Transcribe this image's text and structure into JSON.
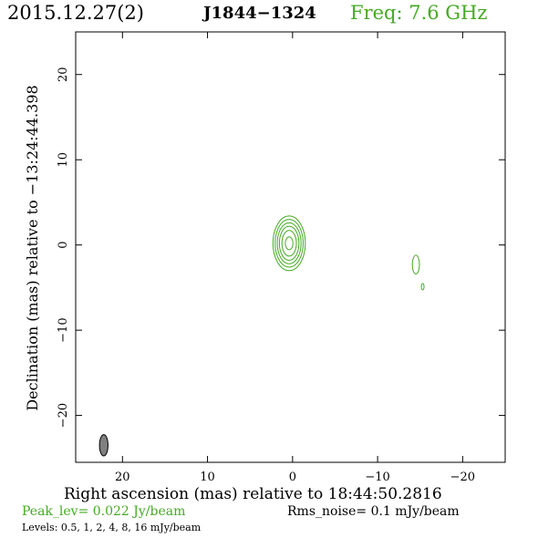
{
  "header": {
    "date": "2015.12.27(2)",
    "source": "J1844−1324",
    "freq": "Freq: 7.6 GHz"
  },
  "footer": {
    "peak": "Peak_lev=  0.022 Jy/beam",
    "rms": "Rms_noise=   0.1 mJy/beam",
    "levels": "Levels: 0.5,    1,    2,    4,    8,   16 mJy/beam"
  },
  "colors": {
    "accent": "#44aa22",
    "beam_fill": "#808080",
    "axis": "#000000"
  },
  "chart_data": {
    "type": "contour",
    "xlabel": "Right ascension (mas) relative to 18:44:50.2816",
    "ylabel": "Declination (mas) relative to −13:24:44.398",
    "xlim": [
      25.5,
      -25
    ],
    "ylim": [
      -25.5,
      25
    ],
    "x_ticks": [
      20,
      10,
      0,
      -10,
      -20
    ],
    "y_ticks": [
      20,
      10,
      0,
      -10,
      -20
    ],
    "x_tick_labels": [
      "20",
      "10",
      "0",
      "−10",
      "−20"
    ],
    "y_tick_labels": [
      "20",
      "10",
      "0",
      "−10",
      "−20"
    ],
    "contour_levels_mJy": [
      0.5,
      1,
      2,
      4,
      8,
      16
    ],
    "components": [
      {
        "name": "core",
        "center": [
          0.4,
          0.2
        ],
        "contours": [
          {
            "semi_major": 3.2,
            "semi_minor": 1.9
          },
          {
            "semi_major": 2.8,
            "semi_minor": 1.65
          },
          {
            "semi_major": 2.4,
            "semi_minor": 1.4
          },
          {
            "semi_major": 2.0,
            "semi_minor": 1.15
          },
          {
            "semi_major": 1.5,
            "semi_minor": 0.85
          },
          {
            "semi_major": 0.75,
            "semi_minor": 0.45
          }
        ]
      },
      {
        "name": "knot-east",
        "center": [
          -14.5,
          -2.3
        ],
        "contours": [
          {
            "semi_major": 1.1,
            "semi_minor": 0.42
          }
        ]
      },
      {
        "name": "knot-east-small",
        "center": [
          -15.3,
          -4.9
        ],
        "contours": [
          {
            "semi_major": 0.38,
            "semi_minor": 0.16
          }
        ]
      }
    ],
    "beam": {
      "center": [
        22.2,
        -23.5
      ],
      "semi_major": 1.25,
      "semi_minor": 0.5
    }
  }
}
